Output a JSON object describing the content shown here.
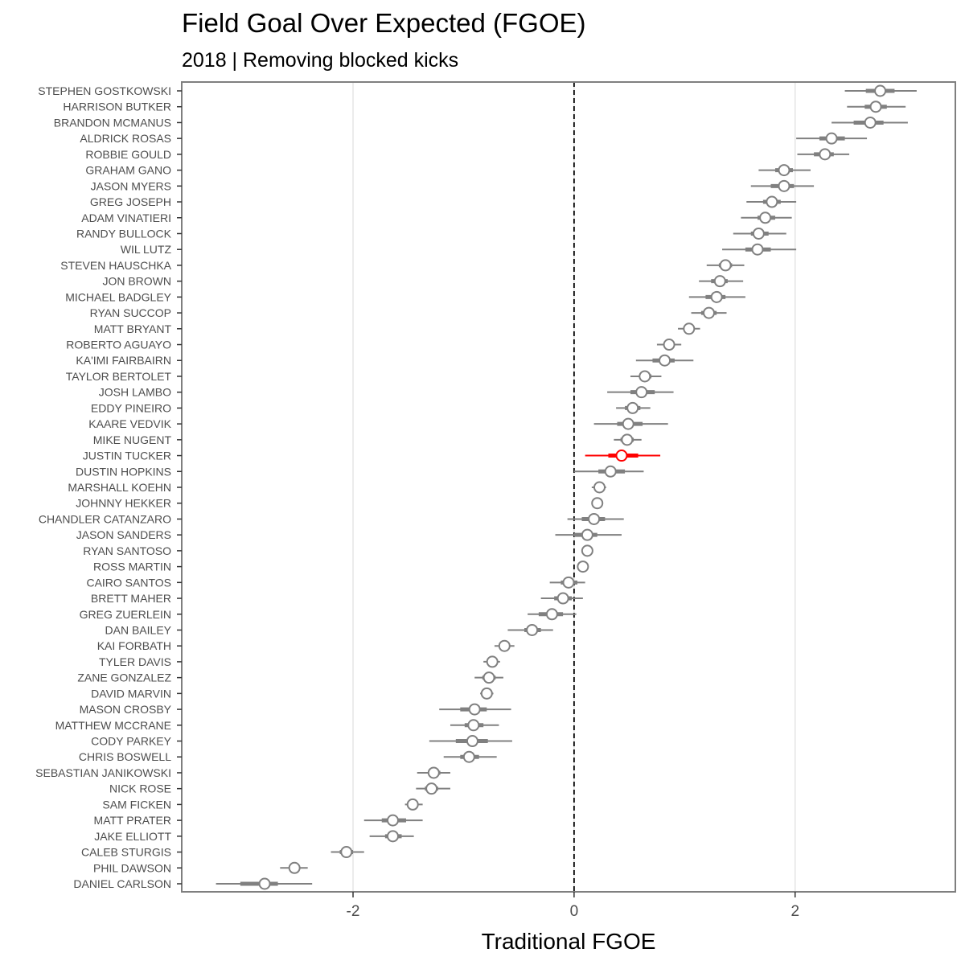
{
  "chart_data": {
    "type": "scatter",
    "title": "Field Goal Over Expected (FGOE)",
    "subtitle": "2018 | Removing blocked kicks",
    "xlabel": "Traditional FGOE",
    "ylabel": "",
    "xlim": [
      -3.55,
      3.45
    ],
    "xticks": [
      -2,
      0,
      2
    ],
    "xtick_labels": [
      "-2",
      "0",
      "2"
    ],
    "grid": "vertical major",
    "reference_line": 0,
    "highlight": "JUSTIN TUCKER",
    "highlight_color": "#ff0000",
    "base_color": "#808080",
    "series": [
      {
        "points": [
          {
            "name": "STEPHEN GOSTKOWSKI",
            "value": 2.77,
            "inner": [
              2.64,
              2.9
            ],
            "outer": [
              2.45,
              3.1
            ]
          },
          {
            "name": "HARRISON BUTKER",
            "value": 2.73,
            "inner": [
              2.63,
              2.83
            ],
            "outer": [
              2.47,
              3.0
            ]
          },
          {
            "name": "BRANDON MCMANUS",
            "value": 2.68,
            "inner": [
              2.53,
              2.8
            ],
            "outer": [
              2.33,
              3.02
            ]
          },
          {
            "name": "ALDRICK ROSAS",
            "value": 2.33,
            "inner": [
              2.22,
              2.45
            ],
            "outer": [
              2.01,
              2.65
            ]
          },
          {
            "name": "ROBBIE GOULD",
            "value": 2.27,
            "inner": [
              2.17,
              2.35
            ],
            "outer": [
              2.02,
              2.49
            ]
          },
          {
            "name": "GRAHAM GANO",
            "value": 1.9,
            "inner": [
              1.82,
              1.98
            ],
            "outer": [
              1.67,
              2.14
            ]
          },
          {
            "name": "JASON MYERS",
            "value": 1.9,
            "inner": [
              1.78,
              1.99
            ],
            "outer": [
              1.6,
              2.17
            ]
          },
          {
            "name": "GREG JOSEPH",
            "value": 1.79,
            "inner": [
              1.71,
              1.87
            ],
            "outer": [
              1.56,
              2.01
            ]
          },
          {
            "name": "ADAM VINATIERI",
            "value": 1.73,
            "inner": [
              1.66,
              1.82
            ],
            "outer": [
              1.51,
              1.97
            ]
          },
          {
            "name": "RANDY BULLOCK",
            "value": 1.67,
            "inner": [
              1.6,
              1.76
            ],
            "outer": [
              1.44,
              1.92
            ]
          },
          {
            "name": "WIL LUTZ",
            "value": 1.66,
            "inner": [
              1.55,
              1.78
            ],
            "outer": [
              1.34,
              2.01
            ]
          },
          {
            "name": "STEVEN HAUSCHKA",
            "value": 1.37,
            "inner": [
              1.31,
              1.43
            ],
            "outer": [
              1.2,
              1.54
            ]
          },
          {
            "name": "JON BROWN",
            "value": 1.32,
            "inner": [
              1.24,
              1.39
            ],
            "outer": [
              1.13,
              1.53
            ]
          },
          {
            "name": "MICHAEL BADGLEY",
            "value": 1.29,
            "inner": [
              1.19,
              1.37
            ],
            "outer": [
              1.04,
              1.55
            ]
          },
          {
            "name": "RYAN SUCCOP",
            "value": 1.22,
            "inner": [
              1.15,
              1.29
            ],
            "outer": [
              1.06,
              1.38
            ]
          },
          {
            "name": "MATT BRYANT",
            "value": 1.04,
            "inner": [
              0.99,
              1.09
            ],
            "outer": [
              0.94,
              1.14
            ]
          },
          {
            "name": "ROBERTO AGUAYO",
            "value": 0.86,
            "inner": [
              0.81,
              0.91
            ],
            "outer": [
              0.75,
              0.97
            ]
          },
          {
            "name": "KA'IMI FAIRBAIRN",
            "value": 0.82,
            "inner": [
              0.71,
              0.91
            ],
            "outer": [
              0.56,
              1.08
            ]
          },
          {
            "name": "TAYLOR BERTOLET",
            "value": 0.64,
            "inner": [
              0.59,
              0.7
            ],
            "outer": [
              0.51,
              0.79
            ]
          },
          {
            "name": "JOSH LAMBO",
            "value": 0.61,
            "inner": [
              0.51,
              0.73
            ],
            "outer": [
              0.3,
              0.9
            ]
          },
          {
            "name": "EDDY PINEIRO",
            "value": 0.53,
            "inner": [
              0.46,
              0.6
            ],
            "outer": [
              0.38,
              0.69
            ]
          },
          {
            "name": "KAARE VEDVIK",
            "value": 0.49,
            "inner": [
              0.39,
              0.62
            ],
            "outer": [
              0.18,
              0.85
            ]
          },
          {
            "name": "MIKE NUGENT",
            "value": 0.48,
            "inner": [
              0.42,
              0.54
            ],
            "outer": [
              0.36,
              0.61
            ]
          },
          {
            "name": "JUSTIN TUCKER",
            "value": 0.43,
            "inner": [
              0.31,
              0.58
            ],
            "outer": [
              0.1,
              0.78
            ]
          },
          {
            "name": "DUSTIN HOPKINS",
            "value": 0.33,
            "inner": [
              0.22,
              0.46
            ],
            "outer": [
              0.0,
              0.63
            ]
          },
          {
            "name": "MARSHALL KOEHN",
            "value": 0.23,
            "inner": [
              0.18,
              0.27
            ],
            "outer": [
              0.16,
              0.29
            ]
          },
          {
            "name": "JOHNNY HEKKER",
            "value": 0.21,
            "inner": [
              0.2,
              0.22
            ],
            "outer": [
              0.19,
              0.23
            ]
          },
          {
            "name": "CHANDLER CATANZARO",
            "value": 0.18,
            "inner": [
              0.07,
              0.28
            ],
            "outer": [
              -0.06,
              0.45
            ]
          },
          {
            "name": "JASON SANDERS",
            "value": 0.12,
            "inner": [
              0.0,
              0.21
            ],
            "outer": [
              -0.17,
              0.43
            ]
          },
          {
            "name": "RYAN SANTOSO",
            "value": 0.12,
            "inner": [
              0.11,
              0.13
            ],
            "outer": [
              0.1,
              0.14
            ]
          },
          {
            "name": "ROSS MARTIN",
            "value": 0.08,
            "inner": [
              0.07,
              0.09
            ],
            "outer": [
              0.06,
              0.1
            ]
          },
          {
            "name": "CAIRO SANTOS",
            "value": -0.05,
            "inner": [
              -0.12,
              0.03
            ],
            "outer": [
              -0.22,
              0.1
            ]
          },
          {
            "name": "BRETT MAHER",
            "value": -0.1,
            "inner": [
              -0.18,
              -0.02
            ],
            "outer": [
              -0.3,
              0.08
            ]
          },
          {
            "name": "GREG ZUERLEIN",
            "value": -0.2,
            "inner": [
              -0.32,
              -0.1
            ],
            "outer": [
              -0.42,
              0.02
            ]
          },
          {
            "name": "DAN BAILEY",
            "value": -0.38,
            "inner": [
              -0.45,
              -0.3
            ],
            "outer": [
              -0.6,
              -0.19
            ]
          },
          {
            "name": "KAI FORBATH",
            "value": -0.63,
            "inner": [
              -0.67,
              -0.59
            ],
            "outer": [
              -0.72,
              -0.54
            ]
          },
          {
            "name": "TYLER DAVIS",
            "value": -0.74,
            "inner": [
              -0.78,
              -0.7
            ],
            "outer": [
              -0.82,
              -0.67
            ]
          },
          {
            "name": "ZANE GONZALEZ",
            "value": -0.77,
            "inner": [
              -0.83,
              -0.71
            ],
            "outer": [
              -0.9,
              -0.64
            ]
          },
          {
            "name": "DAVID MARVIN",
            "value": -0.79,
            "inner": [
              -0.82,
              -0.76
            ],
            "outer": [
              -0.85,
              -0.73
            ]
          },
          {
            "name": "MASON CROSBY",
            "value": -0.9,
            "inner": [
              -1.03,
              -0.79
            ],
            "outer": [
              -1.22,
              -0.57
            ]
          },
          {
            "name": "MATTHEW MCCRANE",
            "value": -0.91,
            "inner": [
              -0.99,
              -0.82
            ],
            "outer": [
              -1.12,
              -0.68
            ]
          },
          {
            "name": "CODY PARKEY",
            "value": -0.92,
            "inner": [
              -1.07,
              -0.78
            ],
            "outer": [
              -1.31,
              -0.56
            ]
          },
          {
            "name": "CHRIS BOSWELL",
            "value": -0.95,
            "inner": [
              -1.03,
              -0.86
            ],
            "outer": [
              -1.18,
              -0.7
            ]
          },
          {
            "name": "SEBASTIAN JANIKOWSKI",
            "value": -1.27,
            "inner": [
              -1.32,
              -1.21
            ],
            "outer": [
              -1.42,
              -1.12
            ]
          },
          {
            "name": "NICK ROSE",
            "value": -1.29,
            "inner": [
              -1.35,
              -1.23
            ],
            "outer": [
              -1.43,
              -1.12
            ]
          },
          {
            "name": "SAM FICKEN",
            "value": -1.46,
            "inner": [
              -1.5,
              -1.42
            ],
            "outer": [
              -1.53,
              -1.37
            ]
          },
          {
            "name": "MATT PRATER",
            "value": -1.64,
            "inner": [
              -1.74,
              -1.52
            ],
            "outer": [
              -1.9,
              -1.37
            ]
          },
          {
            "name": "JAKE ELLIOTT",
            "value": -1.64,
            "inner": [
              -1.71,
              -1.56
            ],
            "outer": [
              -1.85,
              -1.45
            ]
          },
          {
            "name": "CALEB STURGIS",
            "value": -2.06,
            "inner": [
              -2.12,
              -2.0
            ],
            "outer": [
              -2.2,
              -1.9
            ]
          },
          {
            "name": "PHIL DAWSON",
            "value": -2.53,
            "inner": [
              -2.58,
              -2.48
            ],
            "outer": [
              -2.66,
              -2.41
            ]
          },
          {
            "name": "DANIEL CARLSON",
            "value": -2.8,
            "inner": [
              -3.02,
              -2.68
            ],
            "outer": [
              -3.24,
              -2.37
            ]
          }
        ]
      }
    ]
  }
}
